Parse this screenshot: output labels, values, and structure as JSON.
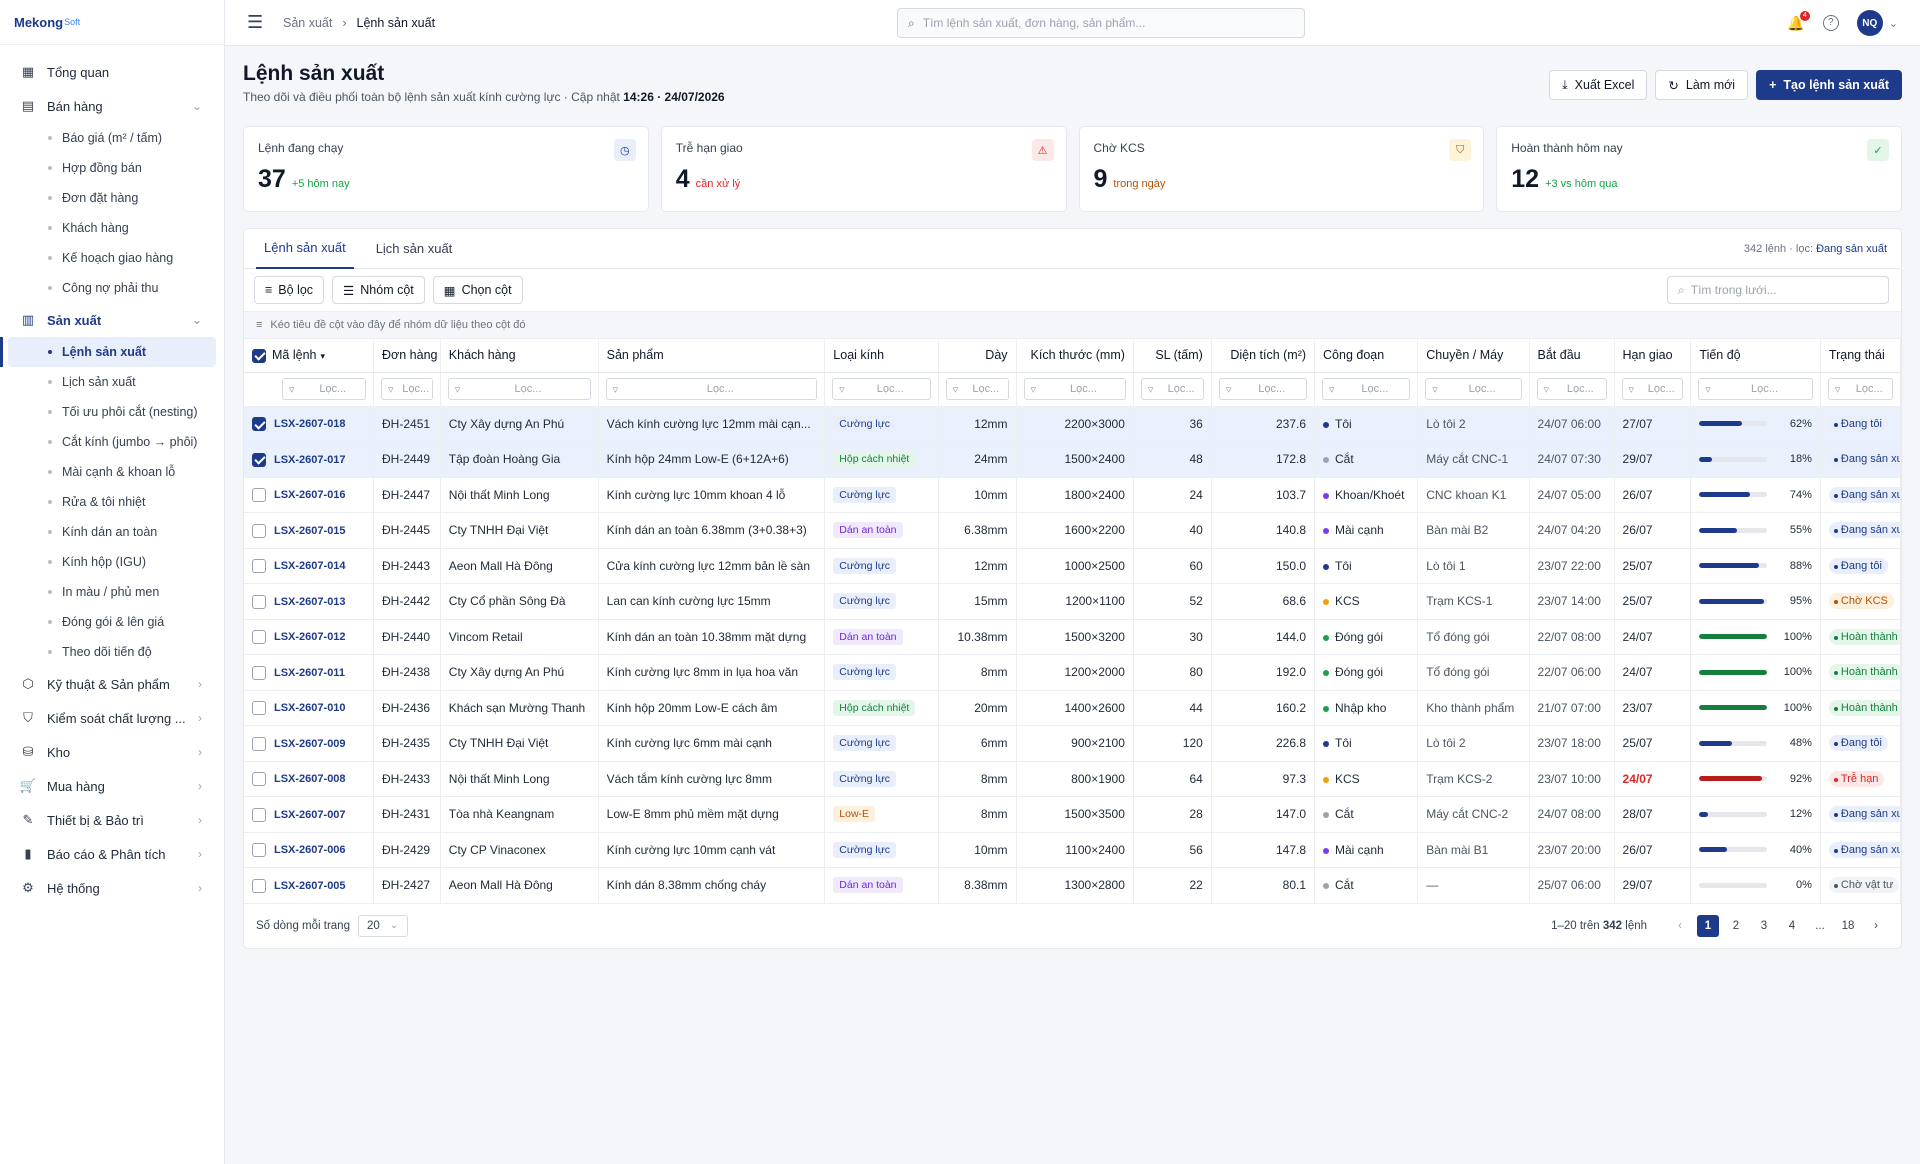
{
  "brand": {
    "name": "Mekong",
    "suffix": "Soft"
  },
  "sidebar": {
    "top": [
      {
        "label": "Tổng quan"
      },
      {
        "label": "Bán hàng"
      }
    ],
    "sales_items": [
      "Báo giá (m² / tấm)",
      "Hợp đồng bán",
      "Đơn đặt hàng",
      "Khách hàng",
      "Kế hoạch giao hàng",
      "Công nợ phải thu"
    ],
    "production_label": "Sản xuất",
    "production_items": [
      "Lệnh sản xuất",
      "Lịch sản xuất",
      "Tối ưu phôi cắt (nesting)",
      "Cắt kính (jumbo → phôi)",
      "Mài cạnh & khoan lỗ",
      "Rửa & tôi nhiệt",
      "Kính dán an toàn",
      "Kính hộp (IGU)",
      "In màu / phủ men",
      "Đóng gói & lên giá",
      "Theo dõi tiến độ"
    ],
    "bottom": [
      "Kỹ thuật & Sản phẩm",
      "Kiểm soát chất lượng ...",
      "Kho",
      "Mua hàng",
      "Thiết bị & Bảo trì",
      "Báo cáo & Phân tích",
      "Hệ thống"
    ]
  },
  "topbar": {
    "breadcrumb": [
      "Sản xuất",
      "Lệnh sản xuất"
    ],
    "search_placeholder": "Tìm lệnh sản xuất, đơn hàng, sản phẩm...",
    "notif_count": "4",
    "avatar": "NQ"
  },
  "page": {
    "title": "Lệnh sản xuất",
    "subtitle": "Theo dõi và điều phối toàn bộ lệnh sản xuất kính cường lực · Cập nhật ",
    "updated": "14:26 · 24/07/2026",
    "export_label": "Xuất Excel",
    "refresh_label": "Làm mới",
    "create_label": "Tạo lệnh sản xuất"
  },
  "stats": [
    {
      "label": "Lệnh đang chạy",
      "value": "37",
      "note": "+5 hôm nay",
      "color": "#16a34a",
      "icon": "clock-icon"
    },
    {
      "label": "Trễ hạn giao",
      "value": "4",
      "note": "cần xử lý",
      "color": "#dc2626",
      "icon": "alert-triangle-icon"
    },
    {
      "label": "Chờ KCS",
      "value": "9",
      "note": "trong ngày",
      "color": "#b45309",
      "icon": "shield-icon"
    },
    {
      "label": "Hoàn thành hôm nay",
      "value": "12",
      "note": "+3 vs hôm qua",
      "color": "#16a34a",
      "icon": "check-circle-icon"
    }
  ],
  "panel": {
    "tabs": [
      "Lệnh sản xuất",
      "Lịch sản xuất"
    ],
    "info_prefix": "342 lệnh · lọc: ",
    "info_filter": "Đang sản xuất",
    "filter_btn": "Bộ lọc",
    "group_btn": "Nhóm cột",
    "cols_btn": "Chọn cột",
    "grid_search_placeholder": "Tìm trong lưới...",
    "group_hint": "Kéo tiêu đề cột vào đây để nhóm dữ liệu theo cột đó",
    "filter_placeholder": "Lọc..."
  },
  "columns": [
    "Mã lệnh",
    "Đơn hàng",
    "Khách hàng",
    "Sản phẩm",
    "Loại kính",
    "Dày",
    "Kích thước (mm)",
    "SL (tấm)",
    "Diện tích (m²)",
    "Công đoạn",
    "Chuyền / Máy",
    "Bắt đầu",
    "Hạn giao",
    "Tiến độ",
    "Trạng thái"
  ],
  "rows": [
    {
      "sel": true,
      "code": "LSX-2607-018",
      "order": "ĐH-2451",
      "customer": "Cty Xây dựng An Phú",
      "product": "Vách kính cường lực 12mm mài cạn...",
      "type": "Cường lực",
      "thick": "12mm",
      "size": "2200×3000",
      "qty": "36",
      "area": "237.6",
      "stage": "Tôi",
      "machine": "Lò tôi 2",
      "start": "24/07 06:00",
      "due": "27/07",
      "late": false,
      "progress": 62,
      "status": "Đang tôi"
    },
    {
      "sel": true,
      "code": "LSX-2607-017",
      "order": "ĐH-2449",
      "customer": "Tập đoàn Hoàng Gia",
      "product": "Kính hộp 24mm Low-E (6+12A+6)",
      "type": "Hộp cách nhiệt",
      "thick": "24mm",
      "size": "1500×2400",
      "qty": "48",
      "area": "172.8",
      "stage": "Cắt",
      "machine": "Máy cắt CNC-1",
      "start": "24/07 07:30",
      "due": "29/07",
      "late": false,
      "progress": 18,
      "status": "Đang sản xuất"
    },
    {
      "sel": false,
      "code": "LSX-2607-016",
      "order": "ĐH-2447",
      "customer": "Nội thất Minh Long",
      "product": "Kính cường lực 10mm khoan 4 lỗ",
      "type": "Cường lực",
      "thick": "10mm",
      "size": "1800×2400",
      "qty": "24",
      "area": "103.7",
      "stage": "Khoan/Khoét",
      "machine": "CNC khoan K1",
      "start": "24/07 05:00",
      "due": "26/07",
      "late": false,
      "progress": 74,
      "status": "Đang sản xuất"
    },
    {
      "sel": false,
      "code": "LSX-2607-015",
      "order": "ĐH-2445",
      "customer": "Cty TNHH Đại Việt",
      "product": "Kính dán an toàn 6.38mm (3+0.38+3)",
      "type": "Dán an toàn",
      "thick": "6.38mm",
      "size": "1600×2200",
      "qty": "40",
      "area": "140.8",
      "stage": "Mài cạnh",
      "machine": "Bàn mài B2",
      "start": "24/07 04:20",
      "due": "26/07",
      "late": false,
      "progress": 55,
      "status": "Đang sản xuất"
    },
    {
      "sel": false,
      "code": "LSX-2607-014",
      "order": "ĐH-2443",
      "customer": "Aeon Mall Hà Đông",
      "product": "Cửa kính cường lực 12mm bản lề sàn",
      "type": "Cường lực",
      "thick": "12mm",
      "size": "1000×2500",
      "qty": "60",
      "area": "150.0",
      "stage": "Tôi",
      "machine": "Lò tôi 1",
      "start": "23/07 22:00",
      "due": "25/07",
      "late": false,
      "progress": 88,
      "status": "Đang tôi"
    },
    {
      "sel": false,
      "code": "LSX-2607-013",
      "order": "ĐH-2442",
      "customer": "Cty Cổ phần Sông Đà",
      "product": "Lan can kính cường lực 15mm",
      "type": "Cường lực",
      "thick": "15mm",
      "size": "1200×1100",
      "qty": "52",
      "area": "68.6",
      "stage": "KCS",
      "machine": "Trạm KCS-1",
      "start": "23/07 14:00",
      "due": "25/07",
      "late": false,
      "progress": 95,
      "status": "Chờ KCS"
    },
    {
      "sel": false,
      "code": "LSX-2607-012",
      "order": "ĐH-2440",
      "customer": "Vincom Retail",
      "product": "Kính dán an toàn 10.38mm mặt dựng",
      "type": "Dán an toàn",
      "thick": "10.38mm",
      "size": "1500×3200",
      "qty": "30",
      "area": "144.0",
      "stage": "Đóng gói",
      "machine": "Tổ đóng gói",
      "start": "22/07 08:00",
      "due": "24/07",
      "late": false,
      "progress": 100,
      "status": "Hoàn thành"
    },
    {
      "sel": false,
      "code": "LSX-2607-011",
      "order": "ĐH-2438",
      "customer": "Cty Xây dựng An Phú",
      "product": "Kính cường lực 8mm in lụa hoa văn",
      "type": "Cường lực",
      "thick": "8mm",
      "size": "1200×2000",
      "qty": "80",
      "area": "192.0",
      "stage": "Đóng gói",
      "machine": "Tổ đóng gói",
      "start": "22/07 06:00",
      "due": "24/07",
      "late": false,
      "progress": 100,
      "status": "Hoàn thành"
    },
    {
      "sel": false,
      "code": "LSX-2607-010",
      "order": "ĐH-2436",
      "customer": "Khách sạn Mường Thanh",
      "product": "Kính hộp 20mm Low-E cách âm",
      "type": "Hộp cách nhiệt",
      "thick": "20mm",
      "size": "1400×2600",
      "qty": "44",
      "area": "160.2",
      "stage": "Nhập kho",
      "machine": "Kho thành phẩm",
      "start": "21/07 07:00",
      "due": "23/07",
      "late": false,
      "progress": 100,
      "status": "Hoàn thành"
    },
    {
      "sel": false,
      "code": "LSX-2607-009",
      "order": "ĐH-2435",
      "customer": "Cty TNHH Đại Việt",
      "product": "Kính cường lực 6mm mài cạnh",
      "type": "Cường lực",
      "thick": "6mm",
      "size": "900×2100",
      "qty": "120",
      "area": "226.8",
      "stage": "Tôi",
      "machine": "Lò tôi 2",
      "start": "23/07 18:00",
      "due": "25/07",
      "late": false,
      "progress": 48,
      "status": "Đang tôi"
    },
    {
      "sel": false,
      "code": "LSX-2607-008",
      "order": "ĐH-2433",
      "customer": "Nội thất Minh Long",
      "product": "Vách tắm kính cường lực 8mm",
      "type": "Cường lực",
      "thick": "8mm",
      "size": "800×1900",
      "qty": "64",
      "area": "97.3",
      "stage": "KCS",
      "machine": "Trạm KCS-2",
      "start": "23/07 10:00",
      "due": "24/07",
      "late": true,
      "progress": 92,
      "status": "Trễ hạn"
    },
    {
      "sel": false,
      "code": "LSX-2607-007",
      "order": "ĐH-2431",
      "customer": "Tòa nhà Keangnam",
      "product": "Low-E 8mm phủ mềm mặt dựng",
      "type": "Low-E",
      "thick": "8mm",
      "size": "1500×3500",
      "qty": "28",
      "area": "147.0",
      "stage": "Cắt",
      "machine": "Máy cắt CNC-2",
      "start": "24/07 08:00",
      "due": "28/07",
      "late": false,
      "progress": 12,
      "status": "Đang sản xuất"
    },
    {
      "sel": false,
      "code": "LSX-2607-006",
      "order": "ĐH-2429",
      "customer": "Cty CP Vinaconex",
      "product": "Kính cường lực 10mm cạnh vát",
      "type": "Cường lực",
      "thick": "10mm",
      "size": "1100×2400",
      "qty": "56",
      "area": "147.8",
      "stage": "Mài cạnh",
      "machine": "Bàn mài B1",
      "start": "23/07 20:00",
      "due": "26/07",
      "late": false,
      "progress": 40,
      "status": "Đang sản xuất"
    },
    {
      "sel": false,
      "code": "LSX-2607-005",
      "order": "ĐH-2427",
      "customer": "Aeon Mall Hà Đông",
      "product": "Kính dán 8.38mm chống cháy",
      "type": "Dán an toàn",
      "thick": "8.38mm",
      "size": "1300×2800",
      "qty": "22",
      "area": "80.1",
      "stage": "Cắt",
      "machine": "—",
      "start": "25/07 06:00",
      "due": "29/07",
      "late": false,
      "progress": 0,
      "status": "Chờ vật tư"
    }
  ],
  "footer": {
    "rows_per_page_label": "Số dòng mỗi trang",
    "rows_per_page": "20",
    "range_prefix": "1–20 trên ",
    "range_total": "342",
    "range_suffix": " lệnh",
    "pages": [
      "1",
      "2",
      "3",
      "4",
      "...",
      "18"
    ]
  },
  "colors": {
    "primary": "#1e3a8a",
    "success": "#16a34a",
    "danger": "#dc2626",
    "warning": "#f59e0b"
  }
}
